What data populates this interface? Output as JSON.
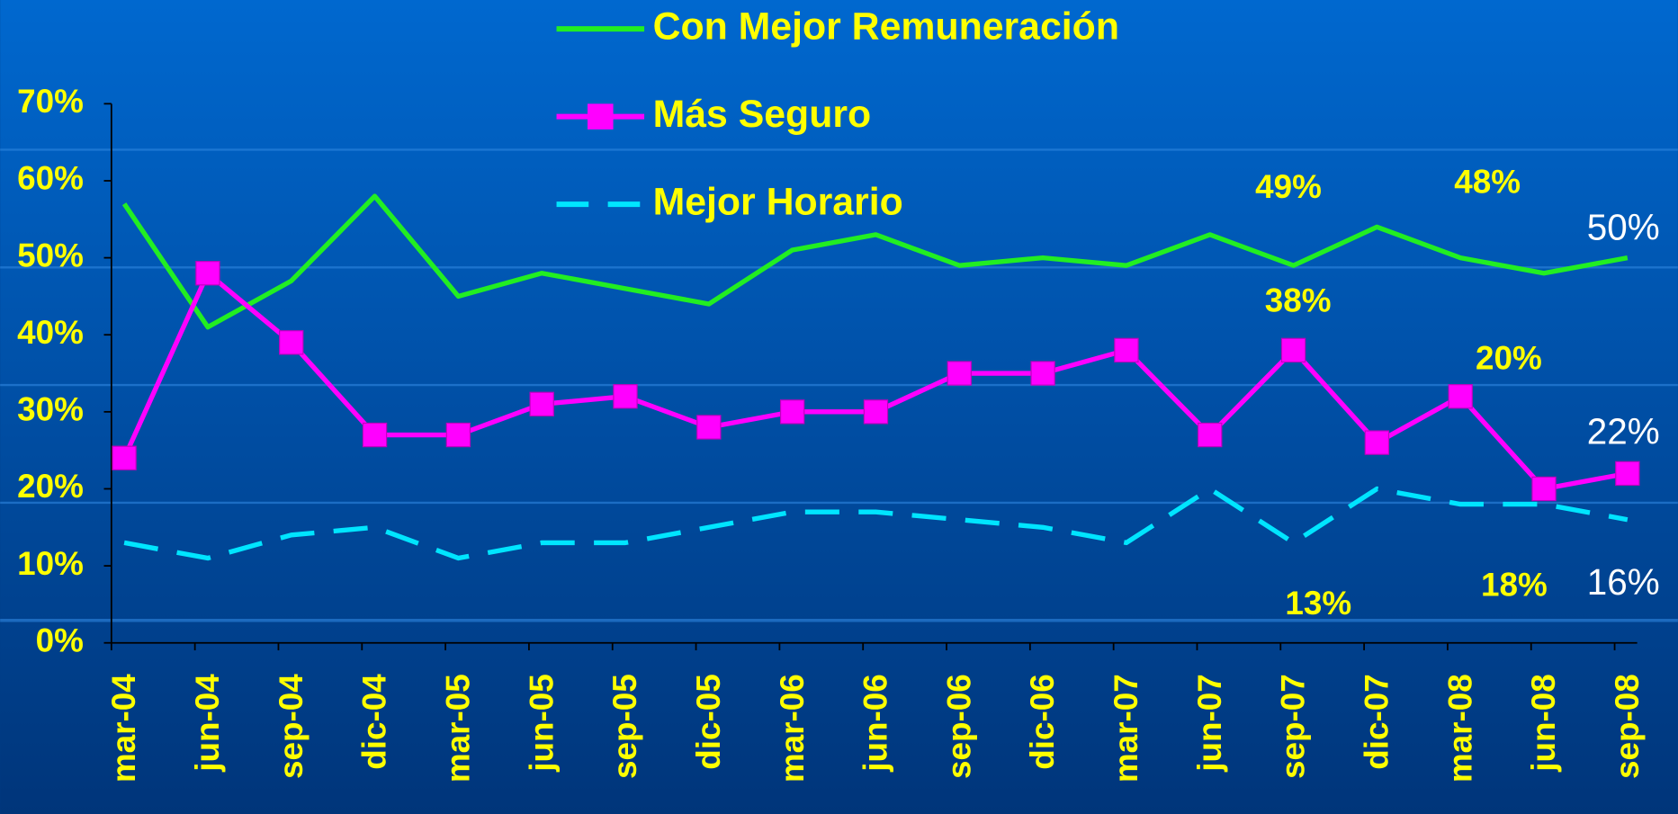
{
  "chart_data": {
    "type": "line",
    "categories": [
      "mar-04",
      "jun-04",
      "sep-04",
      "dic-04",
      "mar-05",
      "jun-05",
      "sep-05",
      "dic-05",
      "mar-06",
      "jun-06",
      "sep-06",
      "dic-06",
      "mar-07",
      "jun-07",
      "sep-07",
      "dic-07",
      "mar-08",
      "jun-08",
      "sep-08"
    ],
    "series": [
      {
        "name": "Con Mejor Remuneración",
        "color": "#22ee22",
        "values": [
          57,
          41,
          47,
          58,
          45,
          48,
          46,
          44,
          51,
          53,
          49,
          50,
          49,
          53,
          49,
          54,
          50,
          48,
          50
        ],
        "value_labels": [
          null,
          null,
          null,
          null,
          null,
          null,
          null,
          null,
          null,
          null,
          null,
          null,
          null,
          null,
          "49%",
          null,
          null,
          "48%",
          "50%"
        ]
      },
      {
        "name": "Más Seguro",
        "color": "#ff00ff",
        "marker": "square",
        "values": [
          24,
          48,
          39,
          27,
          27,
          31,
          32,
          28,
          30,
          30,
          35,
          35,
          38,
          27,
          38,
          26,
          32,
          20,
          22
        ],
        "value_labels": [
          null,
          null,
          null,
          null,
          null,
          null,
          null,
          null,
          null,
          null,
          null,
          null,
          null,
          null,
          "38%",
          null,
          null,
          "20%",
          "22%"
        ]
      },
      {
        "name": "Mejor Horario",
        "color": "#00e5ff",
        "dashed": true,
        "values": [
          13,
          11,
          14,
          15,
          11,
          13,
          13,
          15,
          17,
          17,
          16,
          15,
          13,
          20,
          13,
          20,
          18,
          18,
          16
        ],
        "value_labels": [
          null,
          null,
          null,
          null,
          null,
          null,
          null,
          null,
          null,
          null,
          null,
          null,
          null,
          null,
          "13%",
          null,
          null,
          "18%",
          "16%"
        ]
      }
    ],
    "ylim": [
      0,
      70
    ],
    "yticks": [
      {
        "value": 0,
        "label": "0%"
      },
      {
        "value": 10,
        "label": "10%"
      },
      {
        "value": 20,
        "label": "20%"
      },
      {
        "value": 30,
        "label": "30%"
      },
      {
        "value": 40,
        "label": "40%"
      },
      {
        "value": 50,
        "label": "50%"
      },
      {
        "value": 60,
        "label": "60%"
      },
      {
        "value": 70,
        "label": "70%"
      }
    ],
    "legend": "top"
  }
}
